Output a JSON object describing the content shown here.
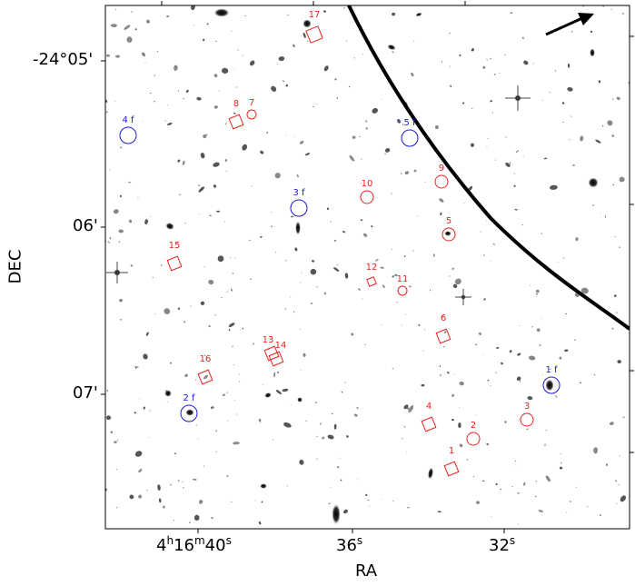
{
  "axes": {
    "xlabel": "RA",
    "ylabel": "DEC",
    "x_ticks": [
      {
        "label_main": "4",
        "sup1": "h",
        "mid": "16",
        "sup2": "m",
        "tail": "40",
        "sup3": "s"
      },
      {
        "label": "36",
        "sup": "s"
      },
      {
        "label": "32",
        "sup": "s"
      }
    ],
    "y_ticks": [
      "-24°05'",
      "06'",
      "07'"
    ]
  },
  "colors": {
    "circle_red": "#e8231d",
    "circle_blue": "#1a1ad6",
    "curve": "#000000"
  },
  "markers": [
    {
      "id": "17",
      "type": "square",
      "color": "red"
    },
    {
      "id": "8",
      "type": "square",
      "color": "red"
    },
    {
      "id": "7",
      "type": "circle",
      "color": "red"
    },
    {
      "id": "4_f",
      "type": "circle",
      "color": "blue"
    },
    {
      "id": "5_f",
      "type": "circle",
      "color": "blue"
    },
    {
      "id": "10",
      "type": "circle",
      "color": "red"
    },
    {
      "id": "9",
      "type": "circle",
      "color": "red"
    },
    {
      "id": "3_f",
      "type": "circle",
      "color": "blue"
    },
    {
      "id": "5",
      "type": "circle",
      "color": "red"
    },
    {
      "id": "15",
      "type": "square",
      "color": "red"
    },
    {
      "id": "12",
      "type": "square",
      "color": "red"
    },
    {
      "id": "11",
      "type": "circle",
      "color": "red"
    },
    {
      "id": "6",
      "type": "square",
      "color": "red"
    },
    {
      "id": "13",
      "type": "square",
      "color": "red"
    },
    {
      "id": "14",
      "type": "square",
      "color": "red"
    },
    {
      "id": "16",
      "type": "square",
      "color": "red"
    },
    {
      "id": "1_f",
      "type": "circle",
      "color": "blue"
    },
    {
      "id": "2_f",
      "type": "circle",
      "color": "blue"
    },
    {
      "id": "3",
      "type": "circle",
      "color": "red"
    },
    {
      "id": "4",
      "type": "square",
      "color": "red"
    },
    {
      "id": "2",
      "type": "circle",
      "color": "red"
    },
    {
      "id": "1",
      "type": "square",
      "color": "red"
    }
  ],
  "compass_arrow": "north-arrow"
}
